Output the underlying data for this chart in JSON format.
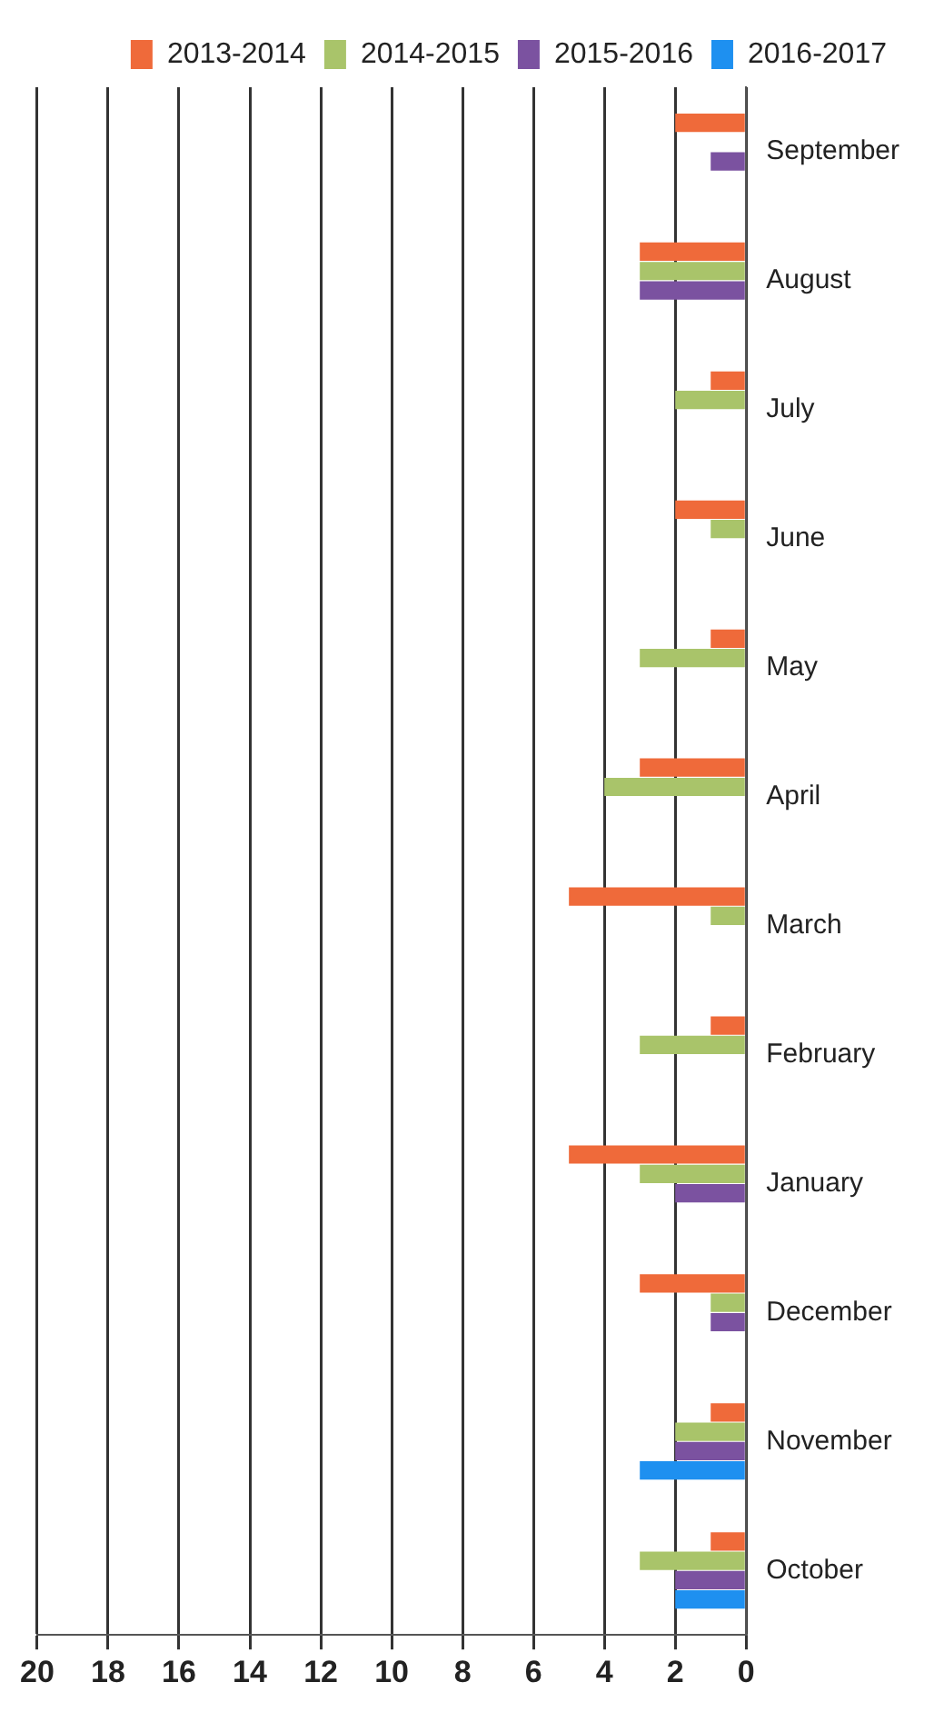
{
  "chart_data": {
    "type": "bar",
    "orientation": "horizontal",
    "categories": [
      "September",
      "August",
      "July",
      "June",
      "May",
      "April",
      "March",
      "February",
      "January",
      "December",
      "November",
      "October"
    ],
    "series": [
      {
        "name": "2013-2014",
        "color": "#ef6a3a",
        "values": [
          2,
          3,
          1,
          2,
          1,
          3,
          5,
          1,
          5,
          3,
          1,
          1
        ]
      },
      {
        "name": "2014-2015",
        "color": "#a9c46a",
        "values": [
          null,
          3,
          2,
          1,
          3,
          4,
          1,
          3,
          3,
          1,
          2,
          3
        ]
      },
      {
        "name": "2015-2016",
        "color": "#7b52a0",
        "values": [
          1,
          3,
          null,
          null,
          null,
          null,
          null,
          null,
          2,
          1,
          2,
          2
        ]
      },
      {
        "name": "2016-2017",
        "color": "#1e90f0",
        "values": [
          null,
          null,
          null,
          null,
          null,
          null,
          null,
          null,
          null,
          null,
          3,
          2
        ]
      }
    ],
    "xlim": [
      20,
      0
    ],
    "xticks": [
      20,
      18,
      16,
      14,
      12,
      10,
      8,
      6,
      4,
      2,
      0
    ],
    "grid": "x",
    "legend": "top right"
  }
}
